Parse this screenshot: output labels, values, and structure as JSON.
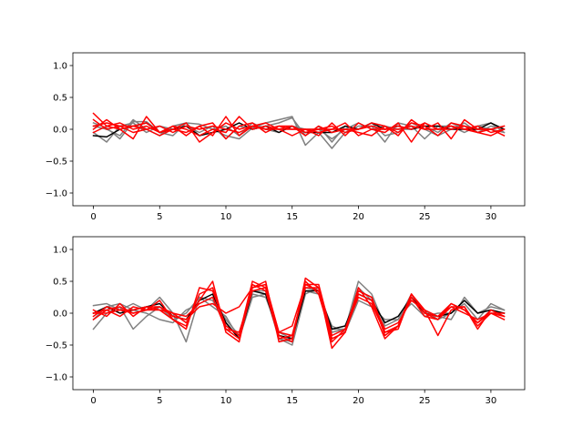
{
  "chart_data": [
    {
      "type": "line",
      "title": "",
      "xlabel": "",
      "ylabel": "",
      "xlim": [
        -1.55,
        32.55
      ],
      "ylim": [
        -1.2,
        1.2
      ],
      "xticks": [
        0,
        5,
        10,
        15,
        20,
        25,
        30
      ],
      "yticks": [
        -1.0,
        -0.5,
        0.0,
        0.5,
        1.0
      ],
      "ytick_labels": [
        "−1.0",
        "−0.5",
        "0.0",
        "0.5",
        "1.0"
      ],
      "grid": false,
      "series_groups": [
        {
          "color": "#808080",
          "series": [
            {
              "values": [
                0.1,
                0.02,
                -0.15,
                0.12,
                0.12,
                -0.05,
                -0.1,
                0.1,
                0.08,
                0.0,
                -0.1,
                -0.15,
                0.02,
                0.1,
                0.15,
                0.2,
                -0.25,
                -0.05,
                -0.3,
                -0.05,
                0.05,
                0.05,
                -0.2,
                0.1,
                0.05,
                -0.15,
                0.05,
                0.05,
                -0.05,
                0.05,
                0.1,
                -0.05
              ]
            },
            {
              "values": [
                -0.05,
                -0.2,
                0.05,
                0.1,
                -0.05,
                0.05,
                0.0,
                0.05,
                -0.05,
                0.05,
                -0.15,
                0.05,
                0.0,
                0.05,
                0.1,
                0.18,
                -0.1,
                0.05,
                -0.2,
                0.05,
                0.0,
                0.1,
                -0.1,
                -0.05,
                0.1,
                0.0,
                -0.1,
                0.0,
                0.1,
                -0.05,
                0.05,
                0.0
              ]
            },
            {
              "values": [
                0.05,
                0.0,
                -0.1,
                0.15,
                0.0,
                -0.1,
                0.05,
                0.1,
                -0.1,
                0.0,
                0.05,
                -0.1,
                0.1,
                0.0,
                -0.05,
                0.05,
                0.0,
                0.0,
                -0.15,
                0.0,
                0.1,
                0.0,
                0.05,
                0.0,
                0.0,
                0.05,
                -0.05,
                0.1,
                0.0,
                0.05,
                0.0,
                -0.05
              ]
            }
          ]
        },
        {
          "color": "#000000",
          "series": [
            {
              "values": [
                -0.1,
                -0.12,
                0.0,
                0.05,
                0.1,
                -0.05,
                0.0,
                0.05,
                -0.1,
                -0.05,
                0.0,
                0.1,
                0.0,
                0.05,
                -0.05,
                0.05,
                -0.05,
                -0.05,
                -0.05,
                0.05,
                0.0,
                0.1,
                0.0,
                0.05,
                0.0,
                0.05,
                0.05,
                0.0,
                0.0,
                0.0,
                0.1,
                0.0
              ]
            }
          ]
        },
        {
          "color": "#ff0000",
          "series": [
            {
              "values": [
                0.25,
                0.05,
                0.1,
                0.0,
                0.05,
                -0.05,
                0.05,
                0.0,
                -0.1,
                0.0,
                -0.05,
                0.2,
                0.0,
                0.05,
                0.0,
                -0.1,
                0.0,
                -0.05,
                0.0,
                0.1,
                -0.1,
                0.0,
                0.0,
                0.05,
                0.0,
                0.1,
                0.0,
                0.0,
                0.05,
                0.0,
                0.0,
                0.05
              ]
            },
            {
              "values": [
                0.05,
                0.1,
                0.05,
                -0.05,
                0.0,
                -0.1,
                0.0,
                0.1,
                -0.2,
                -0.05,
                0.1,
                0.0,
                0.05,
                0.0,
                0.05,
                0.0,
                0.0,
                -0.1,
                0.1,
                -0.1,
                0.1,
                0.0,
                -0.05,
                0.1,
                -0.2,
                0.1,
                0.0,
                0.05,
                0.0,
                -0.05,
                0.0,
                0.05
              ]
            },
            {
              "values": [
                0.0,
                0.15,
                0.0,
                -0.15,
                0.2,
                -0.05,
                0.05,
                -0.1,
                0.05,
                0.1,
                -0.15,
                0.05,
                0.1,
                -0.05,
                0.05,
                0.05,
                -0.1,
                0.05,
                -0.05,
                0.0,
                0.0,
                0.1,
                0.05,
                -0.05,
                0.1,
                0.05,
                -0.1,
                0.1,
                0.05,
                -0.05,
                -0.1,
                0.0
              ]
            },
            {
              "values": [
                -0.05,
                0.05,
                0.0,
                0.05,
                0.0,
                0.05,
                -0.05,
                0.05,
                0.0,
                0.05,
                0.0,
                -0.05,
                0.05,
                0.0,
                0.0,
                0.05,
                -0.05,
                0.0,
                0.05,
                -0.05,
                0.0,
                0.05,
                0.0,
                0.0,
                0.05,
                0.0,
                0.0,
                0.05,
                0.0,
                0.05,
                -0.05,
                0.0
              ]
            },
            {
              "values": [
                0.15,
                0.0,
                0.05,
                0.05,
                0.1,
                -0.05,
                0.0,
                -0.05,
                0.05,
                -0.1,
                0.2,
                -0.1,
                0.05,
                0.1,
                0.0,
                0.0,
                0.0,
                0.0,
                0.0,
                0.0,
                -0.05,
                -0.1,
                0.05,
                -0.1,
                0.15,
                0.0,
                0.1,
                -0.15,
                0.15,
                0.0,
                0.0,
                -0.1
              ]
            }
          ]
        }
      ]
    },
    {
      "type": "line",
      "title": "",
      "xlabel": "",
      "ylabel": "",
      "xlim": [
        -1.55,
        32.55
      ],
      "ylim": [
        -1.2,
        1.2
      ],
      "xticks": [
        0,
        5,
        10,
        15,
        20,
        25,
        30
      ],
      "yticks": [
        -1.0,
        -0.5,
        0.0,
        0.5,
        1.0
      ],
      "ytick_labels": [
        "−1.0",
        "−0.5",
        "0.0",
        "0.5",
        "1.0"
      ],
      "grid": false,
      "series_groups": [
        {
          "color": "#808080",
          "series": [
            {
              "values": [
                0.12,
                0.15,
                0.05,
                0.15,
                0.05,
                0.25,
                0.0,
                -0.45,
                0.25,
                0.2,
                -0.15,
                -0.4,
                0.25,
                0.3,
                -0.4,
                -0.5,
                0.3,
                0.4,
                -0.3,
                -0.25,
                0.5,
                0.3,
                -0.2,
                -0.1,
                0.3,
                0.0,
                -0.05,
                -0.1,
                0.25,
                0.0,
                0.1,
                0.05
              ]
            },
            {
              "values": [
                -0.25,
                0.0,
                0.1,
                -0.25,
                -0.05,
                0.1,
                -0.1,
                0.0,
                0.25,
                0.1,
                -0.05,
                -0.4,
                0.3,
                0.25,
                -0.3,
                -0.4,
                0.35,
                0.3,
                -0.2,
                -0.3,
                0.2,
                0.1,
                -0.1,
                -0.1,
                0.2,
                0.05,
                -0.1,
                0.0,
                0.15,
                -0.1,
                0.15,
                0.05
              ]
            },
            {
              "values": [
                -0.1,
                0.1,
                0.15,
                0.05,
                0.0,
                -0.1,
                -0.15,
                0.05,
                0.15,
                0.25,
                -0.1,
                -0.35,
                0.35,
                0.35,
                -0.4,
                -0.45,
                0.4,
                0.35,
                -0.25,
                -0.25,
                0.4,
                0.2,
                -0.15,
                -0.05,
                0.15,
                -0.05,
                0.0,
                0.0,
                0.2,
                0.0,
                0.05,
                0.0
              ]
            }
          ]
        },
        {
          "color": "#000000",
          "series": [
            {
              "values": [
                0.0,
                0.1,
                0.0,
                0.05,
                0.1,
                0.15,
                -0.05,
                -0.1,
                0.2,
                0.3,
                -0.15,
                -0.4,
                0.35,
                0.3,
                -0.35,
                -0.4,
                0.35,
                0.35,
                -0.25,
                -0.2,
                0.3,
                0.2,
                -0.15,
                -0.05,
                0.25,
                0.0,
                -0.05,
                0.0,
                0.2,
                0.0,
                0.05,
                0.0
              ]
            }
          ]
        },
        {
          "color": "#ff0000",
          "series": [
            {
              "values": [
                0.0,
                0.05,
                0.1,
                0.0,
                0.05,
                0.2,
                -0.1,
                -0.25,
                0.4,
                0.35,
                -0.2,
                -0.35,
                0.5,
                0.4,
                -0.35,
                -0.45,
                0.55,
                0.4,
                -0.55,
                -0.3,
                0.4,
                0.1,
                -0.4,
                -0.2,
                0.3,
                0.05,
                -0.05,
                0.15,
                0.05,
                -0.15,
                0.0,
                -0.1
              ]
            },
            {
              "values": [
                -0.1,
                0.05,
                -0.05,
                0.1,
                0.05,
                0.1,
                0.0,
                -0.15,
                0.2,
                0.5,
                -0.3,
                -0.45,
                0.45,
                0.35,
                -0.4,
                -0.35,
                0.45,
                0.35,
                -0.45,
                -0.25,
                0.35,
                0.25,
                -0.35,
                -0.2,
                0.25,
                -0.05,
                -0.1,
                0.1,
                0.1,
                -0.25,
                0.05,
                -0.05
              ]
            },
            {
              "values": [
                0.05,
                -0.05,
                0.15,
                -0.05,
                0.1,
                0.05,
                0.0,
                -0.05,
                0.15,
                0.25,
                -0.25,
                -0.4,
                0.4,
                0.5,
                -0.45,
                -0.4,
                0.5,
                0.3,
                -0.4,
                -0.3,
                0.3,
                0.2,
                -0.25,
                -0.15,
                0.2,
                0.05,
                -0.35,
                0.05,
                0.1,
                -0.2,
                0.0,
                -0.05
              ]
            },
            {
              "values": [
                -0.05,
                0.1,
                0.05,
                0.05,
                0.1,
                0.1,
                -0.05,
                -0.1,
                0.1,
                0.15,
                0.0,
                0.1,
                0.4,
                0.45,
                -0.3,
                -0.2,
                0.45,
                0.45,
                -0.35,
                -0.25,
                0.25,
                0.15,
                -0.3,
                -0.25,
                0.3,
                0.0,
                -0.05,
                0.1,
                0.0,
                -0.1,
                0.0,
                0.0
              ]
            },
            {
              "values": [
                0.0,
                0.0,
                0.05,
                0.0,
                0.05,
                0.05,
                -0.1,
                -0.2,
                0.3,
                0.4,
                -0.25,
                -0.3,
                0.35,
                0.4,
                -0.3,
                -0.35,
                0.4,
                0.4,
                -0.4,
                -0.3,
                0.35,
                0.25,
                -0.3,
                -0.2,
                0.3,
                0.0,
                -0.1,
                0.15,
                0.05,
                -0.15,
                0.05,
                -0.05
              ]
            }
          ]
        }
      ]
    }
  ]
}
